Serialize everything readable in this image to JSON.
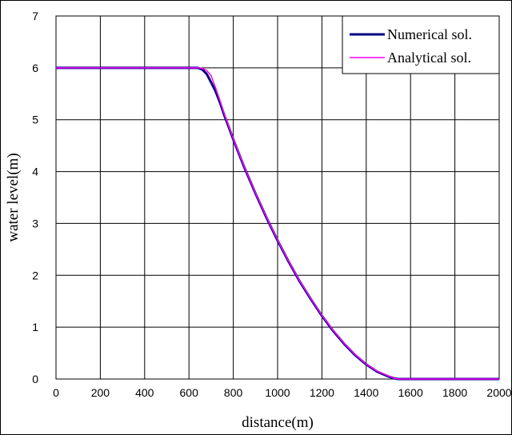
{
  "chart_data": {
    "type": "line",
    "title": "",
    "xlabel": "distance(m)",
    "ylabel": "water level(m)",
    "xlim": [
      0,
      2000
    ],
    "ylim": [
      0,
      7
    ],
    "xticks": [
      0,
      200,
      400,
      600,
      800,
      1000,
      1200,
      1400,
      1600,
      1800,
      2000
    ],
    "yticks": [
      0,
      1,
      2,
      3,
      4,
      5,
      6,
      7
    ],
    "xtick_labels": [
      "0",
      "200",
      "400",
      "600",
      "800",
      "1000",
      "1200",
      "1400",
      "1600",
      "1800",
      "2000"
    ],
    "ytick_labels": [
      "0",
      "1",
      "2",
      "3",
      "4",
      "5",
      "6",
      "7"
    ],
    "grid": true,
    "legend_position": "top-right",
    "series": [
      {
        "name": "Numerical sol.",
        "color": "#000080",
        "x": [
          0,
          100,
          200,
          300,
          400,
          500,
          600,
          640,
          660,
          680,
          700,
          720,
          740,
          760,
          780,
          800,
          850,
          900,
          950,
          1000,
          1050,
          1100,
          1150,
          1200,
          1250,
          1300,
          1350,
          1400,
          1450,
          1500,
          1530,
          1545,
          1600,
          1700,
          1800,
          1900,
          2000
        ],
        "y": [
          6,
          6,
          6,
          6,
          6,
          6,
          6,
          6,
          5.97,
          5.88,
          5.72,
          5.55,
          5.33,
          5.08,
          4.85,
          4.62,
          4.08,
          3.58,
          3.11,
          2.67,
          2.26,
          1.88,
          1.54,
          1.22,
          0.93,
          0.68,
          0.46,
          0.28,
          0.14,
          0.05,
          0.01,
          0,
          0,
          0,
          0,
          0,
          0
        ]
      },
      {
        "name": "Analytical sol.",
        "color": "#ff00ff",
        "x": [
          0,
          100,
          200,
          300,
          400,
          500,
          600,
          640,
          660,
          680,
          700,
          720,
          740,
          760,
          780,
          800,
          850,
          900,
          950,
          1000,
          1050,
          1100,
          1150,
          1200,
          1250,
          1300,
          1350,
          1400,
          1450,
          1500,
          1530,
          1545,
          1600,
          1700,
          1800,
          1900,
          2000
        ],
        "y": [
          6,
          6,
          6,
          6,
          6,
          6,
          6,
          6,
          5.99,
          5.95,
          5.85,
          5.62,
          5.37,
          5.11,
          4.87,
          4.63,
          4.09,
          3.59,
          3.12,
          2.68,
          2.27,
          1.89,
          1.55,
          1.23,
          0.94,
          0.69,
          0.47,
          0.29,
          0.15,
          0.06,
          0.01,
          0,
          0,
          0,
          0,
          0,
          0
        ]
      }
    ]
  }
}
